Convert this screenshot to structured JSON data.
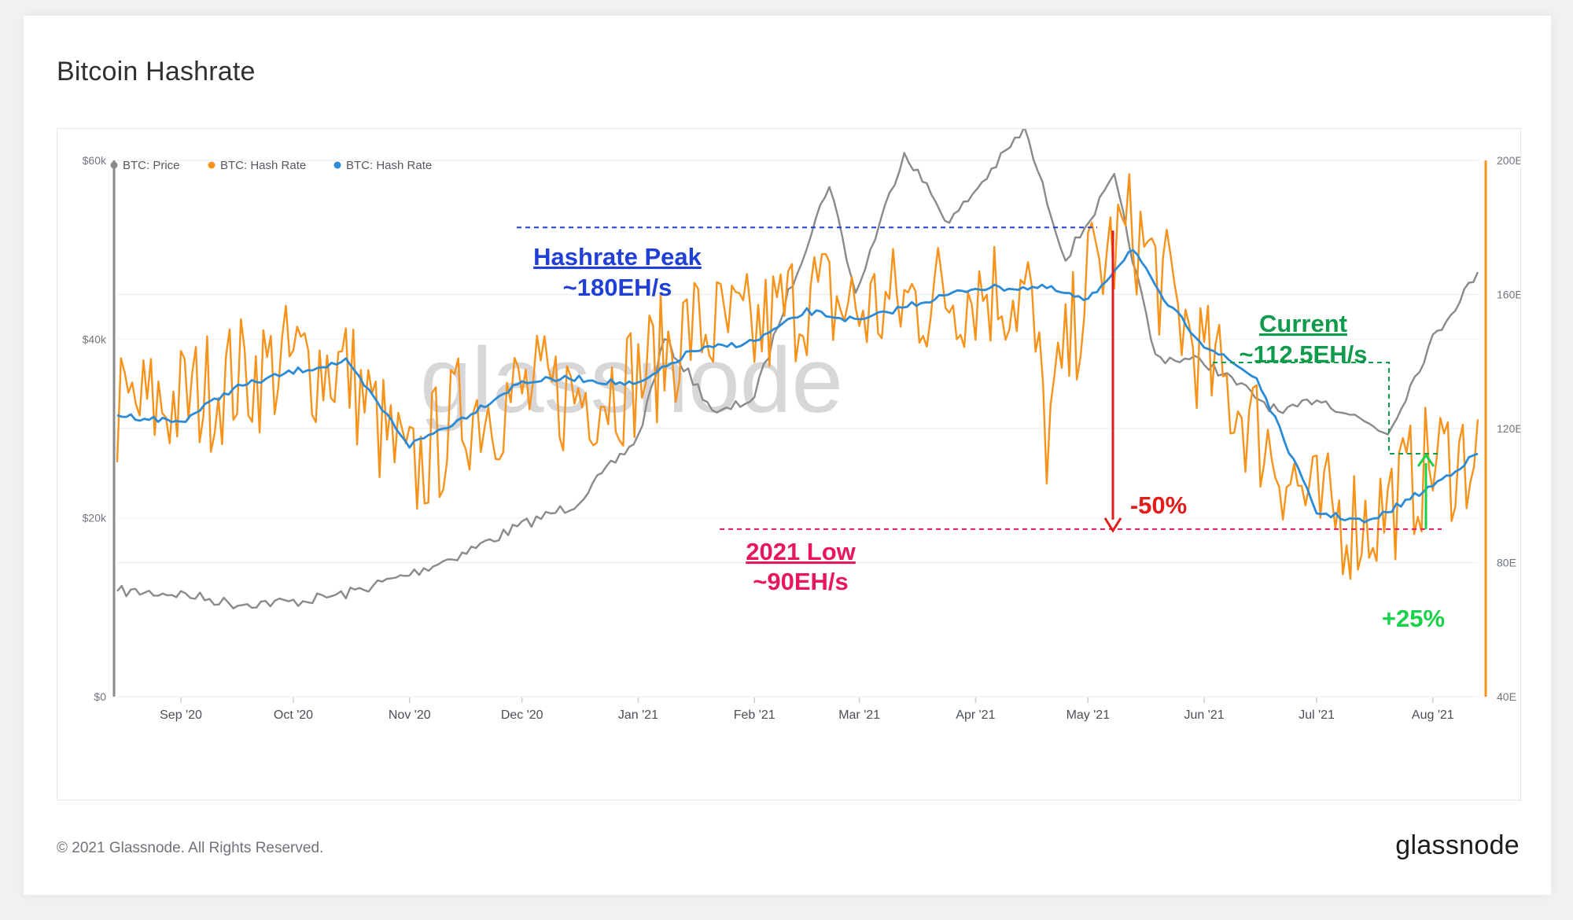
{
  "title": "Bitcoin Hashrate",
  "footer": {
    "copyright": "© 2021 Glassnode. All Rights Reserved.",
    "logo_text": "glassnode"
  },
  "watermark": "glassnode",
  "colors": {
    "price": "#8a8a8a",
    "hashrate": "#f7931a",
    "hashrate_ma": "#2b8bd6",
    "peak": "#1f3fd6",
    "low": "#e8175d",
    "current": "#0f9a4c",
    "drop": "#e31b1b",
    "gain": "#19d14b"
  },
  "chart_data": {
    "type": "line",
    "legend_placement": "top-left",
    "legend": [
      {
        "label": "BTC: Price",
        "color": "#8a8a8a"
      },
      {
        "label": "BTC: Hash Rate",
        "color": "#f7931a"
      },
      {
        "label": "BTC: Hash Rate",
        "color": "#2b8bd6"
      }
    ],
    "x_ticks": [
      "Sep '20",
      "Oct '20",
      "Nov '20",
      "Dec '20",
      "Jan '21",
      "Feb '21",
      "Mar '21",
      "Apr '21",
      "May '21",
      "Jun '21",
      "Jul '21",
      "Aug '21"
    ],
    "x_range": [
      "2020-08-15",
      "2021-08-13"
    ],
    "y_left": {
      "ticks": [
        "$0",
        "$20k",
        "$40k",
        "$60k"
      ],
      "values": [
        0,
        20000,
        40000,
        60000
      ],
      "range": [
        0,
        60000
      ]
    },
    "y_right": {
      "ticks": [
        "40E",
        "80E",
        "120E",
        "160E",
        "200E"
      ],
      "values": [
        40,
        80,
        120,
        160,
        200
      ],
      "range": [
        40,
        200
      ]
    },
    "series": [
      {
        "name": "BTC: Price",
        "axis": "left",
        "x": [
          "2020-08-15",
          "2020-09-01",
          "2020-09-15",
          "2020-10-01",
          "2020-10-15",
          "2020-11-01",
          "2020-11-15",
          "2020-12-01",
          "2020-12-15",
          "2021-01-01",
          "2021-01-08",
          "2021-01-22",
          "2021-02-01",
          "2021-02-10",
          "2021-02-21",
          "2021-02-28",
          "2021-03-13",
          "2021-03-25",
          "2021-04-14",
          "2021-04-25",
          "2021-05-08",
          "2021-05-19",
          "2021-06-01",
          "2021-06-22",
          "2021-07-01",
          "2021-07-20",
          "2021-08-01",
          "2021-08-13"
        ],
        "values": [
          11800,
          11500,
          10400,
          10600,
          11500,
          13700,
          16000,
          19200,
          21500,
          29000,
          40000,
          31500,
          33500,
          45000,
          57500,
          45000,
          61000,
          53000,
          63500,
          49000,
          58000,
          38000,
          37500,
          31500,
          33500,
          29500,
          40000,
          47500
        ]
      },
      {
        "name": "BTC: Hash Rate",
        "axis": "right",
        "x": [
          "2020-08-15",
          "2020-09-01",
          "2020-09-15",
          "2020-10-01",
          "2020-10-15",
          "2020-11-01",
          "2020-11-15",
          "2020-12-01",
          "2020-12-15",
          "2021-01-01",
          "2021-01-15",
          "2021-02-01",
          "2021-02-15",
          "2021-03-01",
          "2021-03-15",
          "2021-04-01",
          "2021-04-15",
          "2021-04-20",
          "2021-05-01",
          "2021-05-13",
          "2021-06-01",
          "2021-06-15",
          "2021-07-01",
          "2021-07-15",
          "2021-08-01",
          "2021-08-13"
        ],
        "values": [
          125,
          128,
          135,
          140,
          138,
          105,
          125,
          130,
          130,
          135,
          150,
          148,
          160,
          155,
          158,
          162,
          160,
          118,
          165,
          180,
          140,
          120,
          95,
          92,
          110,
          112.5
        ]
      },
      {
        "name": "BTC: Hash Rate",
        "axis": "right",
        "x": [
          "2020-08-15",
          "2020-09-01",
          "2020-09-15",
          "2020-10-01",
          "2020-10-15",
          "2020-11-01",
          "2020-11-15",
          "2020-12-01",
          "2020-12-15",
          "2021-01-01",
          "2021-01-15",
          "2021-02-01",
          "2021-02-15",
          "2021-03-01",
          "2021-03-15",
          "2021-04-01",
          "2021-04-20",
          "2021-05-01",
          "2021-05-13",
          "2021-05-20",
          "2021-06-01",
          "2021-06-15",
          "2021-07-01",
          "2021-07-15",
          "2021-08-01",
          "2021-08-13"
        ],
        "values": [
          124,
          122,
          132,
          137,
          140,
          115,
          123,
          134,
          135,
          133,
          143,
          146,
          155,
          152,
          157,
          162,
          162,
          158,
          174,
          160,
          145,
          135,
          95,
          92,
          103,
          112.5
        ]
      }
    ],
    "annotations": {
      "peak": {
        "line1": "Hashrate Peak",
        "line2": "~180EH/s",
        "value": 180
      },
      "low": {
        "line1": "2021 Low",
        "line2": "~90EH/s",
        "value": 90
      },
      "current": {
        "line1": "Current",
        "line2": "~112.5EH/s",
        "value": 112.5
      },
      "drop": {
        "label": "-50%"
      },
      "gain": {
        "label": "+25%"
      }
    }
  }
}
